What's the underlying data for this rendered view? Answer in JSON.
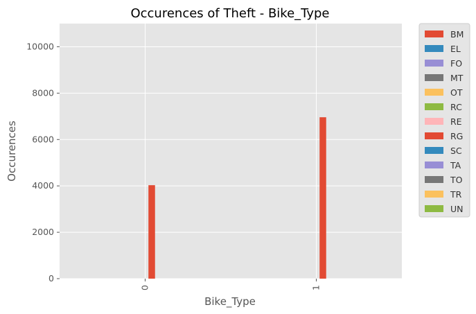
{
  "chart_data": {
    "type": "bar",
    "title": "Occurences of Theft - Bike_Type",
    "xlabel": "Bike_Type",
    "ylabel": "Occurences",
    "categories": [
      "0",
      "1"
    ],
    "ylim": [
      0,
      11000
    ],
    "yticks": [
      "0",
      "2000",
      "4000",
      "6000",
      "8000",
      "10000"
    ],
    "grid": true,
    "legend_placement": "outside-right",
    "series": [
      {
        "name": "BM",
        "color": "#E24A33",
        "values": [
          0,
          0
        ]
      },
      {
        "name": "EL",
        "color": "#348ABD",
        "values": [
          0,
          0
        ]
      },
      {
        "name": "FO",
        "color": "#988ED5",
        "values": [
          0,
          0
        ]
      },
      {
        "name": "MT",
        "color": "#777777",
        "values": [
          0,
          0
        ]
      },
      {
        "name": "OT",
        "color": "#FBC15E",
        "values": [
          0,
          0
        ]
      },
      {
        "name": "RC",
        "color": "#8EBA42",
        "values": [
          0,
          0
        ]
      },
      {
        "name": "RE",
        "color": "#FFB5B8",
        "values": [
          0,
          0
        ]
      },
      {
        "name": "RG",
        "color": "#E24A33",
        "values": [
          4030,
          6960
        ]
      },
      {
        "name": "SC",
        "color": "#348ABD",
        "values": [
          0,
          0
        ]
      },
      {
        "name": "TA",
        "color": "#988ED5",
        "values": [
          0,
          0
        ]
      },
      {
        "name": "TO",
        "color": "#777777",
        "values": [
          0,
          0
        ]
      },
      {
        "name": "TR",
        "color": "#FBC15E",
        "values": [
          0,
          0
        ]
      },
      {
        "name": "UN",
        "color": "#8EBA42",
        "values": [
          0,
          0
        ]
      }
    ],
    "colors": {
      "plot_background": "#E5E5E5",
      "grid": "#FFFFFF",
      "text": "#555555"
    }
  }
}
